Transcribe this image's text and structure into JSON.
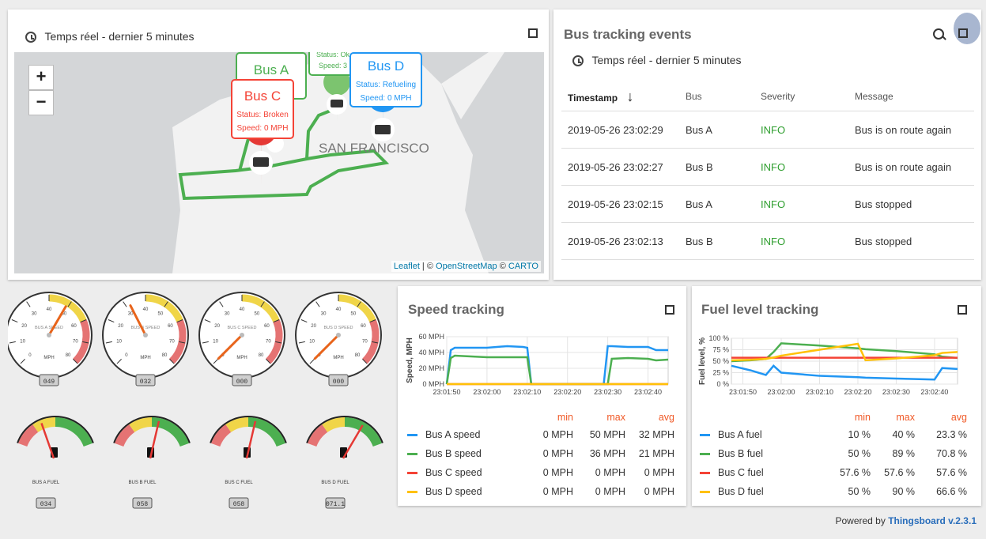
{
  "map_card": {
    "timewindow": "Temps réel - dernier 5 minutes",
    "zoom_in": "+",
    "zoom_out": "−",
    "city_label": "SAN FRANCISCO",
    "attribution": {
      "leaflet": "Leaflet",
      "sep1": " | © ",
      "osm": "OpenStreetMap",
      "sep2": " © ",
      "carto": "CARTO"
    },
    "popups": [
      {
        "name": "Bus A",
        "status": "",
        "speed": "",
        "color": "#4caf50"
      },
      {
        "name": "Bus C",
        "status": "Status: Broken",
        "speed": "Speed: 0 MPH",
        "color": "#f44336"
      },
      {
        "name": "Bus D",
        "status": "Status: Refueling",
        "speed": "Speed: 0 MPH",
        "color": "#2196f3"
      },
      {
        "name": "",
        "status": "Status: Ok",
        "speed": "Speed: 3",
        "color": "#4caf50"
      }
    ]
  },
  "events_card": {
    "title": "Bus tracking events",
    "timewindow": "Temps réel - dernier 5 minutes",
    "columns": {
      "timestamp": "Timestamp",
      "bus": "Bus",
      "severity": "Severity",
      "message": "Message"
    },
    "rows": [
      {
        "timestamp": "2019-05-26 23:02:29",
        "bus": "Bus A",
        "severity": "INFO",
        "message": "Bus is on route again"
      },
      {
        "timestamp": "2019-05-26 23:02:27",
        "bus": "Bus B",
        "severity": "INFO",
        "message": "Bus is on route again"
      },
      {
        "timestamp": "2019-05-26 23:02:15",
        "bus": "Bus A",
        "severity": "INFO",
        "message": "Bus stopped"
      },
      {
        "timestamp": "2019-05-26 23:02:13",
        "bus": "Bus B",
        "severity": "INFO",
        "message": "Bus stopped"
      }
    ],
    "severity_color": "#2e9e2e"
  },
  "speed_gauges": [
    {
      "label": "BUS A SPEED",
      "unit": "MPH",
      "value": 49,
      "display": "049"
    },
    {
      "label": "BUS B SPEED",
      "unit": "MPH",
      "value": 32,
      "display": "032"
    },
    {
      "label": "BUS C SPEED",
      "unit": "MPH",
      "value": 0,
      "display": "000"
    },
    {
      "label": "BUS D SPEED",
      "unit": "MPH",
      "value": 0,
      "display": "000"
    }
  ],
  "speed_gauge_ticks": [
    "0",
    "10",
    "20",
    "30",
    "40",
    "50",
    "60",
    "70",
    "80"
  ],
  "fuel_gauges": [
    {
      "label": "BUS A FUEL",
      "value": 34,
      "display": "034"
    },
    {
      "label": "BUS B FUEL",
      "value": 58,
      "display": "058"
    },
    {
      "label": "BUS C FUEL",
      "value": 58,
      "display": "058"
    },
    {
      "label": "BUS D FUEL",
      "value": 71.1,
      "display": "071.1"
    }
  ],
  "speed_card": {
    "title": "Speed tracking",
    "stat_headers": {
      "min": "min",
      "max": "max",
      "avg": "avg"
    },
    "legend": [
      {
        "name": "Bus A speed",
        "min": "0 MPH",
        "max": "50 MPH",
        "avg": "32 MPH",
        "color": "#2196f3"
      },
      {
        "name": "Bus B speed",
        "min": "0 MPH",
        "max": "36 MPH",
        "avg": "21 MPH",
        "color": "#4caf50"
      },
      {
        "name": "Bus C speed",
        "min": "0 MPH",
        "max": "0 MPH",
        "avg": "0 MPH",
        "color": "#f44336"
      },
      {
        "name": "Bus D speed",
        "min": "0 MPH",
        "max": "0 MPH",
        "avg": "0 MPH",
        "color": "#ffc107"
      }
    ]
  },
  "fuel_card": {
    "title": "Fuel level tracking",
    "stat_headers": {
      "min": "min",
      "max": "max",
      "avg": "avg"
    },
    "legend": [
      {
        "name": "Bus A fuel",
        "min": "10 %",
        "max": "40 %",
        "avg": "23.3 %",
        "color": "#2196f3"
      },
      {
        "name": "Bus B fuel",
        "min": "50 %",
        "max": "89 %",
        "avg": "70.8 %",
        "color": "#4caf50"
      },
      {
        "name": "Bus C fuel",
        "min": "57.6 %",
        "max": "57.6 %",
        "avg": "57.6 %",
        "color": "#f44336"
      },
      {
        "name": "Bus D fuel",
        "min": "50 %",
        "max": "90 %",
        "avg": "66.6 %",
        "color": "#ffc107"
      }
    ]
  },
  "chart_data": [
    {
      "type": "line",
      "ylabel": "Speed, MPH",
      "ytick_labels": [
        "0 MPH",
        "20 MPH",
        "40 MPH",
        "60 MPH"
      ],
      "ylim": [
        0,
        60
      ],
      "xlim": [
        "23:01:50",
        "23:02:45"
      ],
      "xtick_labels": [
        "23:01:50",
        "23:02:00",
        "23:02:10",
        "23:02:20",
        "23:02:30",
        "23:02:40"
      ],
      "x": [
        "23:01:50",
        "23:01:51",
        "23:01:52",
        "23:01:56",
        "23:02:00",
        "23:02:05",
        "23:02:09",
        "23:02:10",
        "23:02:11",
        "23:02:25",
        "23:02:29",
        "23:02:30",
        "23:02:31",
        "23:02:35",
        "23:02:40",
        "23:02:42",
        "23:02:45"
      ],
      "series": [
        {
          "name": "Bus A speed",
          "values": [
            0,
            43,
            46,
            46,
            46,
            48,
            47,
            46,
            0,
            0,
            0,
            48,
            48,
            47,
            47,
            43,
            43
          ]
        },
        {
          "name": "Bus B speed",
          "values": [
            0,
            33,
            36,
            35,
            34,
            34,
            34,
            34,
            0,
            0,
            0,
            0,
            32,
            33,
            32,
            30,
            31
          ]
        },
        {
          "name": "Bus C speed",
          "values": [
            0,
            0,
            0,
            0,
            0,
            0,
            0,
            0,
            0,
            0,
            0,
            0,
            0,
            0,
            0,
            0,
            0
          ]
        },
        {
          "name": "Bus D speed",
          "values": [
            0,
            0,
            0,
            0,
            0,
            0,
            0,
            0,
            0,
            0,
            0,
            0,
            0,
            0,
            0,
            0,
            0
          ]
        }
      ]
    },
    {
      "type": "line",
      "ylabel": "Fuel level, %",
      "ytick_labels": [
        "0 %",
        "25 %",
        "50 %",
        "75 %",
        "100 %"
      ],
      "ylim": [
        0,
        100
      ],
      "xlim": [
        "23:01:47",
        "23:02:46"
      ],
      "xtick_labels": [
        "23:01:50",
        "23:02:00",
        "23:02:10",
        "23:02:20",
        "23:02:30",
        "23:02:40"
      ],
      "x": [
        "23:01:47",
        "23:01:52",
        "23:01:56",
        "23:01:58",
        "23:02:00",
        "23:02:10",
        "23:02:20",
        "23:02:22",
        "23:02:30",
        "23:02:40",
        "23:02:42",
        "23:02:46"
      ],
      "series": [
        {
          "name": "Bus A fuel",
          "values": [
            40,
            30,
            20,
            40,
            25,
            18,
            15,
            14,
            12,
            10,
            35,
            33
          ]
        },
        {
          "name": "Bus B fuel",
          "values": [
            50,
            52,
            55,
            70,
            89,
            84,
            78,
            76,
            72,
            65,
            60,
            57
          ]
        },
        {
          "name": "Bus C fuel",
          "values": [
            57.6,
            57.6,
            57.6,
            57.6,
            57.6,
            57.6,
            57.6,
            57.6,
            57.6,
            57.6,
            57.6,
            57.6
          ]
        },
        {
          "name": "Bus D fuel",
          "values": [
            52,
            53,
            55,
            58,
            62,
            75,
            88,
            52,
            56,
            63,
            68,
            70
          ]
        }
      ]
    }
  ],
  "footer": {
    "powered": "Powered by ",
    "brand": "Thingsboard v.2.3.1"
  }
}
